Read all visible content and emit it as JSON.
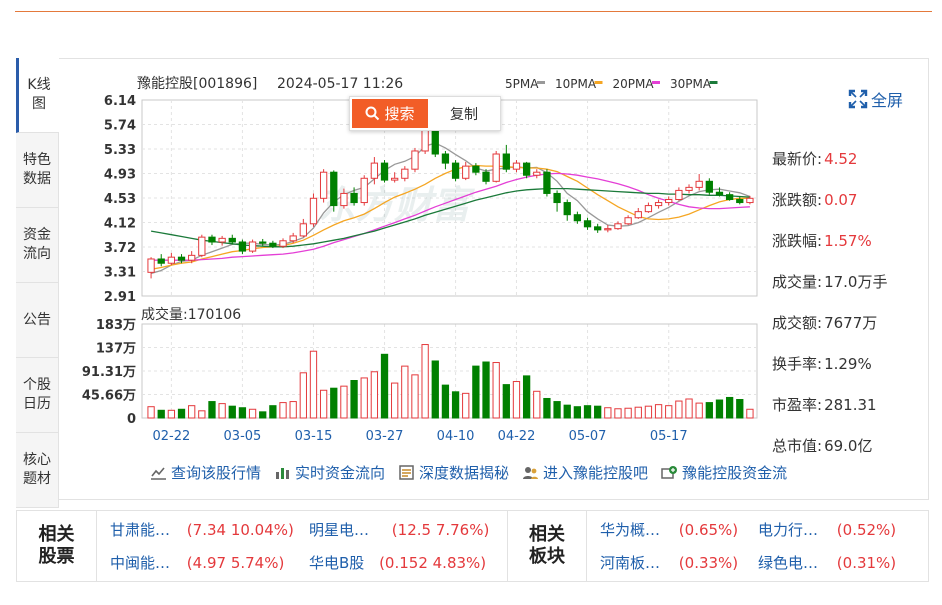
{
  "stock": {
    "name_code": "豫能控股[001896]",
    "datetime": "2024-05-17 11:26"
  },
  "ma_legend": [
    {
      "label": "5PMA",
      "color": "#999999"
    },
    {
      "label": "10PMA",
      "color": "#f5a623"
    },
    {
      "label": "20PMA",
      "color": "#e43fd6"
    },
    {
      "label": "30PMA",
      "color": "#1b7a3a"
    }
  ],
  "side_tabs": [
    "K线图",
    "特色数据",
    "资金流向",
    "公告",
    "个股日历",
    "核心题材"
  ],
  "context_menu": {
    "search": "搜索",
    "copy": "复制"
  },
  "fullscreen_label": "全屏",
  "volume_title": "成交量:170106",
  "quote": [
    {
      "label": "最新价:",
      "value": "4.52",
      "red": true
    },
    {
      "label": "涨跌额:",
      "value": "0.07",
      "red": true
    },
    {
      "label": "涨跌幅:",
      "value": "1.57%",
      "red": true
    },
    {
      "label": "成交量:",
      "value": "17.0万手",
      "red": false
    },
    {
      "label": "成交额:",
      "value": "7677万",
      "red": false
    },
    {
      "label": "换手率:",
      "value": "1.29%",
      "red": false
    },
    {
      "label": "市盈率:",
      "value": "281.31",
      "red": false
    },
    {
      "label": "总市值:",
      "value": "69.0亿",
      "red": false
    }
  ],
  "links": [
    "查询该股行情",
    "实时资金流向",
    "深度数据揭秘",
    "进入豫能控股吧",
    "豫能控股资金流"
  ],
  "related_stocks": {
    "title": [
      "相关",
      "股票"
    ],
    "items": [
      {
        "name": "甘肃能…",
        "value": "(7.34 10.04%)"
      },
      {
        "name": "明星电…",
        "value": "(12.5 7.76%)"
      },
      {
        "name": "中闽能…",
        "value": "(4.97 5.74%)"
      },
      {
        "name": "华电B股",
        "value": "(0.152 4.83%)"
      }
    ]
  },
  "related_sectors": {
    "title": [
      "相关",
      "板块"
    ],
    "items": [
      {
        "name": "华为概…",
        "value": "(0.65%)"
      },
      {
        "name": "电力行…",
        "value": "(0.52%)"
      },
      {
        "name": "河南板…",
        "value": "(0.33%)"
      },
      {
        "name": "绿色电…",
        "value": "(0.31%)"
      }
    ]
  },
  "colors": {
    "up": "#e4393c",
    "down": "#008000",
    "accent": "#f25d27",
    "link": "#1f5fab"
  },
  "chart_data": {
    "type": "candlestick",
    "price_axis": {
      "ticks": [
        "6.14",
        "5.74",
        "5.33",
        "4.93",
        "4.53",
        "4.12",
        "3.72",
        "3.31",
        "2.91"
      ],
      "ylim": [
        2.91,
        6.14
      ]
    },
    "volume_axis": {
      "ticks": [
        "183万",
        "137万",
        "91.31万",
        "45.66万",
        "0"
      ],
      "ylim": [
        0,
        1830000
      ]
    },
    "x_tick_labels": [
      "02-22",
      "03-05",
      "03-15",
      "03-27",
      "04-10",
      "04-22",
      "05-07",
      "05-17"
    ],
    "x_tick_index": [
      2,
      9,
      16,
      23,
      30,
      36,
      43,
      51
    ],
    "candles": [
      [
        3.3,
        3.52,
        3.55,
        3.2
      ],
      [
        3.52,
        3.45,
        3.6,
        3.4
      ],
      [
        3.45,
        3.55,
        3.62,
        3.42
      ],
      [
        3.55,
        3.5,
        3.6,
        3.45
      ],
      [
        3.5,
        3.58,
        3.65,
        3.45
      ],
      [
        3.58,
        3.88,
        3.92,
        3.55
      ],
      [
        3.88,
        3.8,
        3.92,
        3.75
      ],
      [
        3.8,
        3.86,
        3.9,
        3.74
      ],
      [
        3.86,
        3.8,
        3.92,
        3.76
      ],
      [
        3.8,
        3.65,
        3.84,
        3.6
      ],
      [
        3.65,
        3.8,
        3.84,
        3.62
      ],
      [
        3.8,
        3.78,
        3.85,
        3.74
      ],
      [
        3.78,
        3.73,
        3.82,
        3.7
      ],
      [
        3.73,
        3.82,
        3.86,
        3.7
      ],
      [
        3.82,
        3.9,
        3.95,
        3.78
      ],
      [
        3.9,
        4.1,
        4.18,
        3.88
      ],
      [
        4.1,
        4.52,
        4.6,
        4.05
      ],
      [
        4.52,
        4.95,
        5.0,
        4.45
      ],
      [
        4.95,
        4.4,
        4.98,
        4.3
      ],
      [
        4.4,
        4.6,
        4.68,
        4.35
      ],
      [
        4.6,
        4.45,
        4.7,
        4.4
      ],
      [
        4.45,
        4.85,
        4.9,
        4.4
      ],
      [
        4.85,
        5.1,
        5.2,
        4.75
      ],
      [
        5.1,
        4.82,
        5.15,
        4.78
      ],
      [
        4.82,
        4.85,
        4.95,
        4.78
      ],
      [
        4.85,
        5.0,
        5.05,
        4.8
      ],
      [
        5.0,
        5.3,
        5.35,
        4.95
      ],
      [
        5.3,
        5.65,
        5.75,
        5.25
      ],
      [
        5.65,
        5.25,
        5.68,
        5.2
      ],
      [
        5.25,
        5.1,
        5.3,
        5.0
      ],
      [
        5.1,
        4.85,
        5.15,
        4.8
      ],
      [
        4.85,
        5.05,
        5.12,
        4.82
      ],
      [
        5.05,
        4.95,
        5.1,
        4.9
      ],
      [
        4.95,
        4.8,
        5.0,
        4.75
      ],
      [
        4.8,
        5.25,
        5.3,
        4.78
      ],
      [
        5.25,
        5.0,
        5.4,
        4.95
      ],
      [
        5.0,
        5.1,
        5.15,
        4.95
      ],
      [
        5.1,
        4.9,
        5.12,
        4.85
      ],
      [
        4.9,
        4.95,
        5.0,
        4.85
      ],
      [
        4.95,
        4.6,
        5.0,
        4.55
      ],
      [
        4.6,
        4.45,
        4.65,
        4.3
      ],
      [
        4.45,
        4.25,
        4.5,
        4.15
      ],
      [
        4.25,
        4.15,
        4.3,
        4.1
      ],
      [
        4.15,
        4.05,
        4.2,
        4.0
      ],
      [
        4.05,
        4.0,
        4.1,
        3.95
      ],
      [
        4.0,
        4.02,
        4.08,
        3.96
      ],
      [
        4.02,
        4.1,
        4.14,
        4.0
      ],
      [
        4.1,
        4.2,
        4.24,
        4.08
      ],
      [
        4.2,
        4.3,
        4.36,
        4.18
      ],
      [
        4.3,
        4.4,
        4.45,
        4.28
      ],
      [
        4.4,
        4.45,
        4.5,
        4.35
      ],
      [
        4.45,
        4.5,
        4.55,
        4.4
      ],
      [
        4.5,
        4.65,
        4.7,
        4.48
      ],
      [
        4.65,
        4.7,
        4.75,
        4.6
      ],
      [
        4.7,
        4.8,
        4.92,
        4.65
      ],
      [
        4.8,
        4.62,
        4.85,
        4.58
      ],
      [
        4.62,
        4.58,
        4.7,
        4.55
      ],
      [
        4.58,
        4.5,
        4.62,
        4.48
      ],
      [
        4.5,
        4.45,
        4.55,
        4.42
      ],
      [
        4.45,
        4.52,
        4.56,
        4.42
      ]
    ],
    "volume": [
      220000,
      150000,
      150000,
      170000,
      240000,
      140000,
      320000,
      280000,
      230000,
      200000,
      170000,
      120000,
      240000,
      300000,
      320000,
      880000,
      1300000,
      540000,
      580000,
      620000,
      730000,
      780000,
      900000,
      1240000,
      680000,
      1010000,
      840000,
      1430000,
      1110000,
      640000,
      510000,
      480000,
      1010000,
      1090000,
      1080000,
      650000,
      710000,
      820000,
      520000,
      380000,
      320000,
      250000,
      220000,
      240000,
      230000,
      200000,
      180000,
      190000,
      210000,
      230000,
      260000,
      240000,
      330000,
      370000,
      290000,
      300000,
      350000,
      400000,
      360000,
      170000
    ],
    "ma": [
      {
        "name": "5PMA",
        "color": "#999999",
        "values": [
          3.28,
          3.33,
          3.42,
          3.48,
          3.5,
          3.58,
          3.64,
          3.7,
          3.76,
          3.78,
          3.78,
          3.76,
          3.75,
          3.76,
          3.81,
          3.87,
          4.03,
          4.28,
          4.46,
          4.58,
          4.65,
          4.7,
          4.84,
          4.98,
          5.08,
          5.13,
          5.21,
          5.38,
          5.43,
          5.35,
          5.24,
          5.14,
          5.02,
          4.97,
          5.0,
          5.02,
          5.04,
          5.02,
          5.03,
          4.94,
          4.8,
          4.6,
          4.48,
          4.3,
          4.18,
          4.08,
          4.06,
          4.07,
          4.12,
          4.2,
          4.29,
          4.37,
          4.47,
          4.56,
          4.63,
          4.66,
          4.67,
          4.64,
          4.61,
          4.55
        ]
      },
      {
        "name": "10PMA",
        "color": "#f5a623",
        "values": [
          3.35,
          3.38,
          3.42,
          3.45,
          3.47,
          3.52,
          3.56,
          3.6,
          3.64,
          3.66,
          3.69,
          3.71,
          3.72,
          3.74,
          3.78,
          3.83,
          3.91,
          4.0,
          4.08,
          4.15,
          4.2,
          4.26,
          4.35,
          4.45,
          4.54,
          4.6,
          4.67,
          4.75,
          4.85,
          4.93,
          5.0,
          5.04,
          5.06,
          5.05,
          5.05,
          5.04,
          5.03,
          5.02,
          5.02,
          5.0,
          4.96,
          4.88,
          4.8,
          4.69,
          4.58,
          4.48,
          4.38,
          4.3,
          4.22,
          4.18,
          4.17,
          4.18,
          4.21,
          4.26,
          4.33,
          4.4,
          4.46,
          4.5,
          4.52,
          4.52
        ]
      },
      {
        "name": "20PMA",
        "color": "#e43fd6",
        "values": [
          3.5,
          3.5,
          3.5,
          3.5,
          3.5,
          3.51,
          3.52,
          3.53,
          3.55,
          3.56,
          3.57,
          3.58,
          3.59,
          3.6,
          3.62,
          3.65,
          3.68,
          3.73,
          3.79,
          3.84,
          3.89,
          3.94,
          4.0,
          4.06,
          4.12,
          4.18,
          4.24,
          4.31,
          4.38,
          4.44,
          4.5,
          4.56,
          4.62,
          4.67,
          4.72,
          4.78,
          4.83,
          4.87,
          4.9,
          4.92,
          4.93,
          4.92,
          4.9,
          4.87,
          4.84,
          4.8,
          4.76,
          4.71,
          4.65,
          4.58,
          4.52,
          4.47,
          4.42,
          4.38,
          4.36,
          4.35,
          4.35,
          4.36,
          4.37,
          4.38
        ]
      },
      {
        "name": "30PMA",
        "color": "#1b7a3a",
        "values": [
          3.98,
          3.95,
          3.92,
          3.89,
          3.86,
          3.83,
          3.81,
          3.79,
          3.77,
          3.75,
          3.74,
          3.73,
          3.72,
          3.72,
          3.73,
          3.75,
          3.77,
          3.8,
          3.83,
          3.86,
          3.9,
          3.94,
          3.98,
          4.03,
          4.08,
          4.13,
          4.18,
          4.24,
          4.29,
          4.34,
          4.39,
          4.44,
          4.49,
          4.53,
          4.57,
          4.61,
          4.64,
          4.66,
          4.67,
          4.68,
          4.68,
          4.68,
          4.67,
          4.66,
          4.65,
          4.64,
          4.63,
          4.62,
          4.61,
          4.6,
          4.6,
          4.59,
          4.59,
          4.58,
          4.58,
          4.57,
          4.57,
          4.56,
          4.55,
          4.54
        ]
      }
    ]
  }
}
